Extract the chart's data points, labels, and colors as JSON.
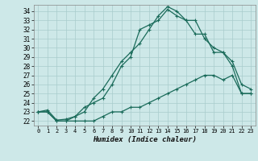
{
  "xlabel": "Humidex (Indice chaleur)",
  "xlim": [
    -0.5,
    23.5
  ],
  "ylim": [
    21.5,
    34.7
  ],
  "xticks": [
    0,
    1,
    2,
    3,
    4,
    5,
    6,
    7,
    8,
    9,
    10,
    11,
    12,
    13,
    14,
    15,
    16,
    17,
    18,
    19,
    20,
    21,
    22,
    23
  ],
  "yticks": [
    22,
    23,
    24,
    25,
    26,
    27,
    28,
    29,
    30,
    31,
    32,
    33,
    34
  ],
  "background_color": "#cde8e8",
  "grid_color": "#a8cccc",
  "line_color": "#1a6b5a",
  "line1": [
    23.0,
    23.2,
    22.1,
    22.2,
    22.5,
    23.0,
    24.5,
    25.5,
    27.0,
    28.5,
    29.5,
    30.5,
    32.0,
    33.5,
    34.5,
    34.0,
    33.0,
    31.5,
    31.5,
    29.5,
    29.5,
    28.0,
    25.0,
    25.0
  ],
  "line2": [
    23.0,
    23.0,
    22.0,
    22.0,
    22.5,
    23.5,
    24.0,
    24.5,
    26.0,
    28.0,
    29.0,
    32.0,
    32.5,
    33.0,
    34.2,
    33.5,
    33.0,
    33.0,
    31.0,
    30.0,
    29.5,
    28.5,
    26.0,
    25.5
  ],
  "line3": [
    23.0,
    23.0,
    22.0,
    22.0,
    22.0,
    22.0,
    22.0,
    22.5,
    23.0,
    23.0,
    23.5,
    23.5,
    24.0,
    24.5,
    25.0,
    25.5,
    26.0,
    26.5,
    27.0,
    27.0,
    26.5,
    27.0,
    25.0,
    25.0
  ]
}
